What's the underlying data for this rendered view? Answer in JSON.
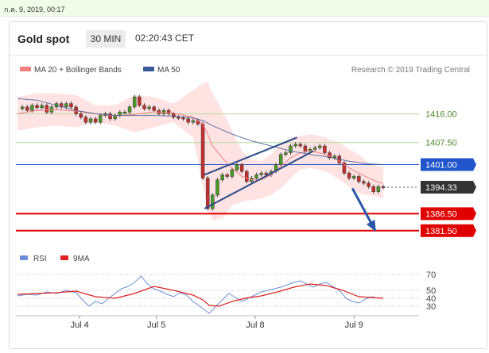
{
  "timestamp": "ก.ค. 9, 2019, 00:17",
  "header": {
    "instrument": "Gold spot",
    "timeframe": "30 MIN",
    "time": "02:20:43 CET"
  },
  "legend": {
    "ma20_label": "MA 20 + Bollinger Bands",
    "ma50_label": "MA 50",
    "credit": "Research © 2019 Trading Central",
    "colors": {
      "ma20": "#f08080",
      "ma50": "#3a5a9a",
      "bands": "#ffe0e0"
    }
  },
  "rsi_legend": {
    "rsi_label": "RSI",
    "ma_label": "9MA",
    "colors": {
      "rsi": "#6a8fd8",
      "ma": "#dd2222"
    }
  },
  "chart_data": [
    {
      "type": "line",
      "title": "Gold spot",
      "x_ticks": [
        "Jul 4",
        "Jul 5",
        "Jul 8",
        "Jul 9"
      ],
      "ylim": [
        1377,
        1425
      ],
      "levels": [
        {
          "label": "1416.00",
          "value": 1416.0,
          "kind": "resistance",
          "color": "#b5d99c",
          "text_color": "#4a8a2a"
        },
        {
          "label": "1407.50",
          "value": 1407.5,
          "kind": "resistance",
          "color": "#b5d99c",
          "text_color": "#4a8a2a"
        },
        {
          "label": "1401.00",
          "value": 1401.0,
          "kind": "pivot",
          "color": "#2255cc",
          "text_color": "#ffffff"
        },
        {
          "label": "1394.33",
          "value": 1394.33,
          "kind": "last",
          "color": "#333333",
          "text_color": "#ffffff"
        },
        {
          "label": "1386.50",
          "value": 1386.5,
          "kind": "support",
          "color": "#e00000",
          "text_color": "#ffffff"
        },
        {
          "label": "1381.50",
          "value": 1381.5,
          "kind": "support",
          "color": "#e00000",
          "text_color": "#ffffff"
        }
      ],
      "series": [
        {
          "name": "Gold spot",
          "x": [
            0,
            3,
            6,
            9,
            12,
            15,
            18,
            21,
            24,
            27,
            30,
            33,
            36,
            39,
            42,
            45,
            48,
            51,
            54,
            57,
            60,
            63,
            66,
            69,
            72,
            75,
            78,
            81,
            84,
            87,
            90,
            93,
            96,
            99,
            102,
            105,
            108,
            111,
            114,
            117,
            120,
            123,
            126,
            129,
            132,
            135,
            138,
            141,
            144,
            147,
            150,
            153,
            156,
            159,
            162,
            165,
            168,
            171,
            174,
            177,
            180,
            183,
            186,
            189,
            192,
            195,
            198,
            201,
            204,
            207,
            210,
            213,
            216,
            219,
            222,
            225
          ],
          "values": [
            1417.5,
            1418.0,
            1417.0,
            1418.5,
            1417.8,
            1418.5,
            1416.5,
            1418.0,
            1419.0,
            1418.0,
            1419.0,
            1418.0,
            1416.0,
            1415.0,
            1413.5,
            1414.5,
            1413.5,
            1415.5,
            1416.0,
            1414.5,
            1415.5,
            1416.5,
            1416.5,
            1418.0,
            1421.0,
            1418.5,
            1417.5,
            1418.0,
            1417.0,
            1416.0,
            1417.0,
            1416.0,
            1415.0,
            1414.8,
            1414.5,
            1413.5,
            1414.0,
            1413.0,
            1397.0,
            1388.0,
            1392.0,
            1396.5,
            1398.0,
            1397.5,
            1399.5,
            1401.0,
            1399.0,
            1396.0,
            1397.0,
            1398.0,
            1398.5,
            1398.0,
            1399.0,
            1401.0,
            1404.0,
            1404.5,
            1406.5,
            1407.0,
            1406.5,
            1405.0,
            1405.5,
            1406.0,
            1406.5,
            1404.5,
            1403.0,
            1403.5,
            1401.5,
            1398.5,
            1397.0,
            1397.5,
            1396.0,
            1395.5,
            1394.5,
            1393.0,
            1394.5,
            1394.33
          ]
        },
        {
          "name": "MA 20",
          "x": [
            0,
            12,
            24,
            36,
            48,
            60,
            72,
            84,
            96,
            108,
            114,
            117,
            120,
            126,
            132,
            138,
            144,
            150,
            156,
            162,
            168,
            174,
            180,
            186,
            192,
            198,
            204,
            210,
            216,
            222,
            225
          ],
          "values": [
            1416.0,
            1417.0,
            1417.2,
            1416.8,
            1416.0,
            1415.4,
            1415.8,
            1416.6,
            1416.2,
            1415.0,
            1413.0,
            1410.0,
            1406.5,
            1403.0,
            1400.0,
            1397.5,
            1396.5,
            1396.5,
            1398.0,
            1400.5,
            1403.0,
            1404.5,
            1405.0,
            1404.5,
            1403.5,
            1402.0,
            1400.0,
            1398.5,
            1397.0,
            1395.8,
            1395.5
          ]
        },
        {
          "name": "MA 50",
          "x": [
            0,
            12,
            24,
            36,
            48,
            60,
            72,
            84,
            96,
            108,
            114,
            120,
            132,
            144,
            156,
            168,
            180,
            192,
            204,
            216,
            225
          ],
          "values": [
            1420.5,
            1420.0,
            1418.5,
            1417.0,
            1416.0,
            1415.5,
            1415.5,
            1415.5,
            1415.3,
            1414.8,
            1414.0,
            1412.5,
            1410.0,
            1408.0,
            1406.5,
            1405.0,
            1404.0,
            1403.2,
            1402.0,
            1401.2,
            1401.0
          ]
        },
        {
          "name": "Bollinger upper",
          "x": [
            0,
            12,
            24,
            36,
            48,
            60,
            72,
            84,
            96,
            108,
            114,
            117,
            120,
            126,
            132,
            138,
            144,
            150,
            156,
            162,
            168,
            174,
            180,
            186,
            192,
            198,
            204,
            210,
            216,
            222,
            225
          ],
          "values": [
            1421.0,
            1422.0,
            1422.0,
            1421.5,
            1418.5,
            1418.5,
            1421.5,
            1421.0,
            1419.0,
            1423.0,
            1425.0,
            1425.5,
            1422.0,
            1417.0,
            1411.0,
            1405.0,
            1402.5,
            1402.0,
            1404.0,
            1407.0,
            1409.0,
            1409.5,
            1410.0,
            1409.5,
            1408.5,
            1407.5,
            1405.5,
            1404.0,
            1401.5,
            1400.5,
            1400.5
          ]
        },
        {
          "name": "Bollinger lower",
          "x": [
            0,
            12,
            24,
            36,
            48,
            60,
            72,
            84,
            96,
            108,
            114,
            117,
            120,
            126,
            132,
            138,
            144,
            150,
            156,
            162,
            168,
            174,
            180,
            186,
            192,
            198,
            204,
            210,
            216,
            222,
            225
          ],
          "values": [
            1411.0,
            1412.0,
            1412.5,
            1412.0,
            1413.5,
            1412.5,
            1410.5,
            1412.0,
            1413.5,
            1409.0,
            1395.0,
            1388.0,
            1384.5,
            1385.0,
            1389.0,
            1390.0,
            1390.5,
            1391.0,
            1392.0,
            1394.0,
            1397.0,
            1399.5,
            1400.0,
            1399.5,
            1398.5,
            1396.5,
            1394.5,
            1392.5,
            1392.0,
            1391.5,
            1391.0
          ]
        }
      ],
      "patterns": [
        {
          "type": "rising-wedge-upper",
          "x": [
            115,
            172
          ],
          "values": [
            1398.0,
            1409.0
          ]
        },
        {
          "type": "rising-wedge-lower",
          "x": [
            115,
            182
          ],
          "values": [
            1388.0,
            1405.0
          ]
        },
        {
          "type": "forecast-arrow",
          "x": [
            206,
            220
          ],
          "values": [
            1394.0,
            1381.6
          ]
        }
      ]
    },
    {
      "type": "line",
      "title": "RSI",
      "ylim": [
        22,
        76
      ],
      "y_ticks": [
        70,
        50,
        40,
        30
      ],
      "series": [
        {
          "name": "RSI",
          "x": [
            0,
            6,
            12,
            18,
            24,
            30,
            36,
            40,
            44,
            48,
            52,
            56,
            60,
            64,
            68,
            72,
            76,
            80,
            84,
            88,
            92,
            96,
            100,
            104,
            108,
            112,
            116,
            118,
            122,
            126,
            130,
            134,
            138,
            142,
            146,
            150,
            154,
            158,
            162,
            166,
            170,
            174,
            178,
            182,
            186,
            190,
            194,
            198,
            202,
            206,
            210,
            214,
            218,
            222,
            225
          ],
          "values": [
            43,
            45,
            44,
            48,
            46,
            50,
            47,
            38,
            30,
            36,
            33,
            40,
            46,
            52,
            55,
            60,
            68,
            58,
            52,
            49,
            45,
            42,
            47,
            44,
            36,
            30,
            24,
            21,
            30,
            38,
            46,
            41,
            36,
            40,
            44,
            48,
            50,
            52,
            54,
            57,
            60,
            62,
            58,
            54,
            58,
            60,
            55,
            50,
            40,
            36,
            34,
            39,
            42,
            40,
            40
          ]
        },
        {
          "name": "9MA",
          "x": [
            0,
            12,
            24,
            36,
            48,
            60,
            72,
            84,
            96,
            108,
            114,
            118,
            124,
            132,
            140,
            150,
            160,
            170,
            180,
            190,
            200,
            210,
            225
          ],
          "values": [
            45,
            46,
            47,
            49,
            42,
            40,
            46,
            55,
            50,
            44,
            38,
            31,
            30,
            36,
            40,
            43,
            48,
            54,
            58,
            56,
            50,
            42,
            40
          ]
        }
      ]
    }
  ]
}
